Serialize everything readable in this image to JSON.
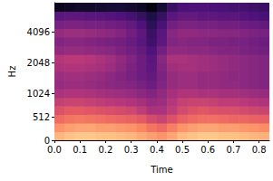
{
  "chart_data": {
    "type": "heatmap",
    "xlabel": "Time",
    "ylabel": "Hz",
    "xlim": [
      0,
      0.84
    ],
    "xticks": [
      {
        "value": 0,
        "label": "0.0"
      },
      {
        "value": 0.1,
        "label": "0.1"
      },
      {
        "value": 0.2,
        "label": "0.2"
      },
      {
        "value": 0.3,
        "label": "0.3"
      },
      {
        "value": 0.4,
        "label": "0.4"
      },
      {
        "value": 0.5,
        "label": "0.5"
      },
      {
        "value": 0.6,
        "label": "0.6"
      },
      {
        "value": 0.7,
        "label": "0.7"
      },
      {
        "value": 0.8,
        "label": "0.8"
      }
    ],
    "ylim": [
      0,
      8000
    ],
    "yticks": [
      0,
      512,
      1024,
      2048,
      4096
    ],
    "zlim": [
      -80,
      0
    ],
    "xbins": [
      0,
      0.04,
      0.08,
      0.12,
      0.16,
      0.2,
      0.24,
      0.28,
      0.32,
      0.36,
      0.4,
      0.44,
      0.48,
      0.52,
      0.56,
      0.6,
      0.64,
      0.68,
      0.72,
      0.76,
      0.8,
      0.84
    ],
    "ybins": [
      0,
      190,
      380,
      570,
      750,
      940,
      1150,
      1390,
      1690,
      2050,
      2490,
      3030,
      3680,
      4470,
      5420,
      6590,
      8000
    ],
    "cells": [
      [
        -12,
        -10,
        -9,
        -9,
        -10,
        -10,
        -11,
        -12,
        -14,
        -16,
        -18,
        -15,
        -11,
        -10,
        -9,
        -9,
        -10,
        -10,
        -11,
        -12,
        -13
      ],
      [
        -18,
        -16,
        -15,
        -15,
        -16,
        -16,
        -17,
        -18,
        -20,
        -24,
        -26,
        -22,
        -18,
        -16,
        -15,
        -15,
        -16,
        -16,
        -17,
        -18,
        -19
      ],
      [
        -26,
        -24,
        -23,
        -24,
        -25,
        -26,
        -27,
        -28,
        -30,
        -34,
        -36,
        -32,
        -28,
        -26,
        -25,
        -25,
        -26,
        -27,
        -27,
        -28,
        -29
      ],
      [
        -32,
        -30,
        -30,
        -31,
        -32,
        -33,
        -34,
        -35,
        -38,
        -42,
        -42,
        -38,
        -34,
        -32,
        -31,
        -32,
        -33,
        -33,
        -34,
        -35,
        -36
      ],
      [
        -37,
        -36,
        -36,
        -37,
        -38,
        -39,
        -40,
        -41,
        -43,
        -46,
        -45,
        -40,
        -37,
        -36,
        -36,
        -37,
        -38,
        -38,
        -39,
        -40,
        -41
      ],
      [
        -42,
        -41,
        -41,
        -42,
        -43,
        -44,
        -45,
        -46,
        -48,
        -50,
        -47,
        -43,
        -41,
        -41,
        -42,
        -42,
        -43,
        -43,
        -44,
        -45,
        -46
      ],
      [
        -46,
        -45,
        -45,
        -46,
        -47,
        -48,
        -49,
        -50,
        -52,
        -54,
        -50,
        -46,
        -45,
        -45,
        -46,
        -46,
        -47,
        -47,
        -48,
        -49,
        -50
      ],
      [
        -45,
        -44,
        -44,
        -45,
        -46,
        -48,
        -50,
        -52,
        -54,
        -56,
        -51,
        -46,
        -45,
        -45,
        -46,
        -46,
        -47,
        -48,
        -48,
        -49,
        -50
      ],
      [
        -42,
        -41,
        -41,
        -42,
        -43,
        -45,
        -48,
        -51,
        -54,
        -57,
        -50,
        -44,
        -43,
        -43,
        -44,
        -45,
        -46,
        -47,
        -48,
        -49,
        -50
      ],
      [
        -40,
        -39,
        -39,
        -40,
        -42,
        -44,
        -47,
        -50,
        -54,
        -58,
        -49,
        -42,
        -42,
        -43,
        -44,
        -45,
        -46,
        -47,
        -48,
        -49,
        -50
      ],
      [
        -47,
        -46,
        -46,
        -47,
        -48,
        -49,
        -51,
        -53,
        -56,
        -60,
        -53,
        -47,
        -47,
        -48,
        -48,
        -49,
        -50,
        -50,
        -51,
        -52,
        -53
      ],
      [
        -50,
        -49,
        -49,
        -50,
        -51,
        -52,
        -53,
        -55,
        -58,
        -63,
        -57,
        -50,
        -49,
        -50,
        -50,
        -51,
        -51,
        -52,
        -52,
        -53,
        -54
      ],
      [
        -46,
        -45,
        -45,
        -46,
        -47,
        -48,
        -50,
        -53,
        -57,
        -64,
        -58,
        -49,
        -47,
        -47,
        -48,
        -48,
        -49,
        -49,
        -50,
        -51,
        -52
      ],
      [
        -52,
        -51,
        -51,
        -52,
        -52,
        -53,
        -54,
        -56,
        -60,
        -67,
        -61,
        -53,
        -51,
        -51,
        -52,
        -52,
        -53,
        -53,
        -54,
        -55,
        -56
      ],
      [
        -58,
        -57,
        -57,
        -58,
        -58,
        -59,
        -60,
        -62,
        -65,
        -70,
        -65,
        -58,
        -56,
        -56,
        -57,
        -57,
        -58,
        -58,
        -59,
        -60,
        -61
      ],
      [
        -76,
        -75,
        -74,
        -74,
        -73,
        -72,
        -72,
        -73,
        -75,
        -78,
        -72,
        -64,
        -61,
        -60,
        -60,
        -61,
        -61,
        -62,
        -62,
        -63,
        -64
      ]
    ]
  }
}
